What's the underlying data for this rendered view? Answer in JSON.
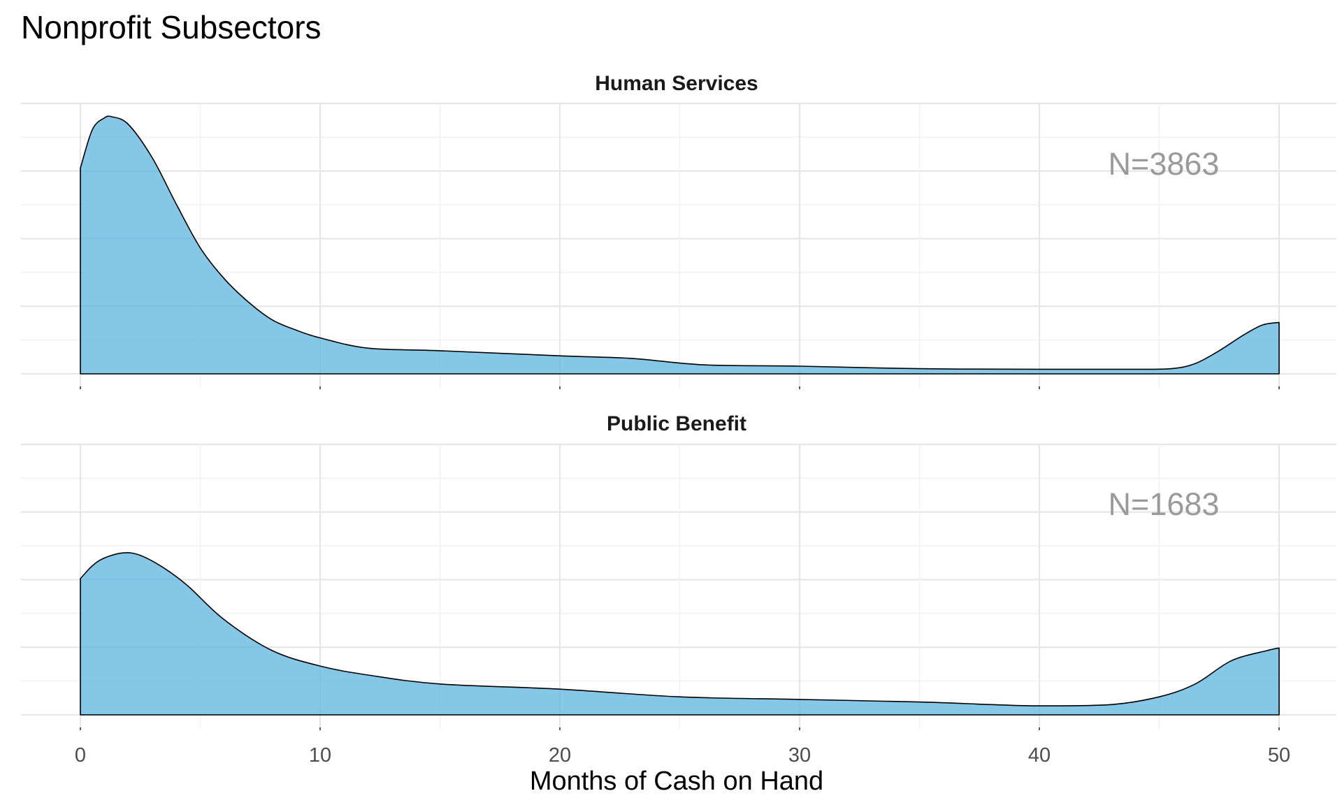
{
  "chart_data": {
    "type": "area",
    "title": "Nonprofit Subsectors",
    "xlabel": "Months of Cash on Hand",
    "ylabel": "",
    "xlim": [
      0,
      50
    ],
    "x_ticks": [
      "0",
      "10",
      "20",
      "30",
      "40",
      "50"
    ],
    "y_tick_labels": false,
    "grid": true,
    "colors": {
      "fill": "#5db3df",
      "outline": "#000000",
      "annotation": "#9a9a9a"
    },
    "panels": [
      {
        "strip": "Human Services",
        "annotation": "N=3863",
        "x": [
          0,
          0.5,
          1,
          1.3,
          2,
          3,
          4,
          5,
          6,
          7,
          8,
          9,
          10,
          12,
          15,
          20,
          23,
          26,
          30,
          35,
          40,
          44,
          45.5,
          46.5,
          47.5,
          48.5,
          49.3,
          50
        ],
        "y": [
          0.8,
          0.95,
          0.995,
          1.0,
          0.97,
          0.84,
          0.66,
          0.49,
          0.37,
          0.28,
          0.21,
          0.17,
          0.14,
          0.1,
          0.09,
          0.07,
          0.06,
          0.035,
          0.03,
          0.02,
          0.018,
          0.018,
          0.02,
          0.04,
          0.09,
          0.15,
          0.19,
          0.2
        ]
      },
      {
        "strip": "Public Benefit",
        "annotation": "N=1683",
        "x": [
          0,
          0.5,
          1,
          1.8,
          2.5,
          3.5,
          4.5,
          6,
          8,
          10,
          12,
          15,
          20,
          25,
          30,
          35,
          38,
          40,
          43,
          45,
          46.5,
          48,
          49.5,
          50
        ],
        "y": [
          0.53,
          0.58,
          0.61,
          0.63,
          0.62,
          0.57,
          0.5,
          0.37,
          0.25,
          0.19,
          0.155,
          0.12,
          0.1,
          0.07,
          0.06,
          0.05,
          0.04,
          0.035,
          0.04,
          0.07,
          0.12,
          0.21,
          0.25,
          0.26
        ]
      }
    ]
  }
}
